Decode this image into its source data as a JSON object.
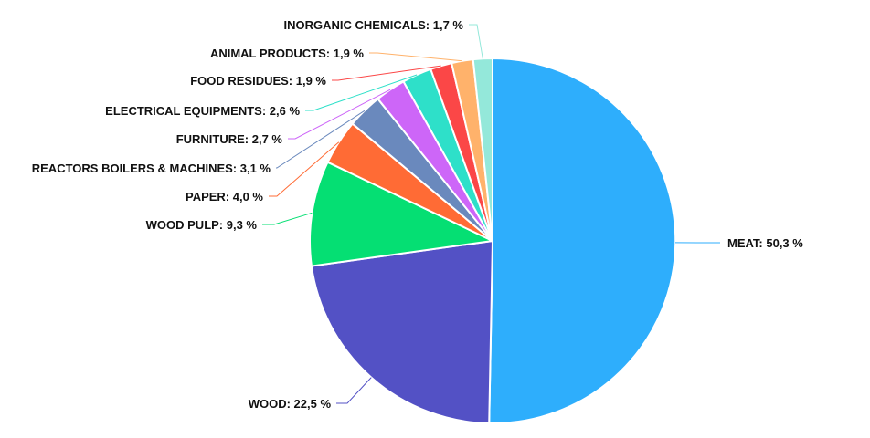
{
  "chart_data": {
    "type": "pie",
    "title": "",
    "decimal_separator": ",",
    "unit_suffix": " %",
    "slices": [
      {
        "label": "MEAT",
        "value": 50.3,
        "color": "#2eaefc"
      },
      {
        "label": "WOOD",
        "value": 22.5,
        "color": "#5351c5"
      },
      {
        "label": "WOOD PULP",
        "value": 9.3,
        "color": "#05df73"
      },
      {
        "label": "PAPER",
        "value": 4.0,
        "color": "#ff6b35"
      },
      {
        "label": "REACTORS BOILERS & MACHINES",
        "value": 3.1,
        "color": "#6a89bd"
      },
      {
        "label": "FURNITURE",
        "value": 2.7,
        "color": "#cd66f8"
      },
      {
        "label": "ELECTRICAL EQUIPMENTS",
        "value": 2.6,
        "color": "#2ee0c9"
      },
      {
        "label": "FOOD RESIDUES",
        "value": 1.9,
        "color": "#fb4747"
      },
      {
        "label": "ANIMAL PRODUCTS",
        "value": 1.9,
        "color": "#ffb26b"
      },
      {
        "label": "INORGANIC CHEMICALS",
        "value": 1.7,
        "color": "#94e8da"
      }
    ]
  }
}
